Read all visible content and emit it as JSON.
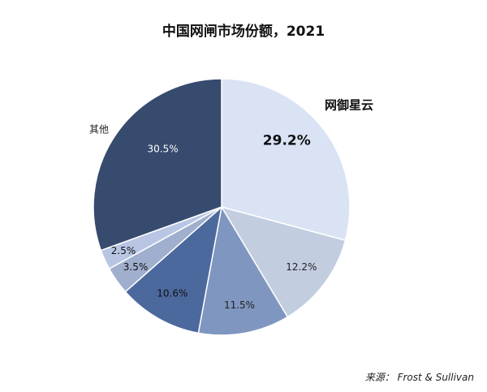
{
  "chart_data": {
    "type": "pie",
    "title": "中国网闸市场份额，2021",
    "slices": [
      {
        "label": "网御星云",
        "value": 29.2,
        "value_label": "29.2%",
        "color": "#dae3f4"
      },
      {
        "label": "",
        "value": 12.2,
        "value_label": "12.2%",
        "color": "#c2cde0"
      },
      {
        "label": "",
        "value": 11.5,
        "value_label": "11.5%",
        "color": "#7f96c0"
      },
      {
        "label": "",
        "value": 10.6,
        "value_label": "10.6%",
        "color": "#4c699e"
      },
      {
        "label": "",
        "value": 3.5,
        "value_label": "3.5%",
        "color": "#9fafcd"
      },
      {
        "label": "",
        "value": 2.5,
        "value_label": "2.5%",
        "color": "#b8c6e4"
      },
      {
        "label": "其他",
        "value": 30.5,
        "value_label": "30.5%",
        "color": "#364b6e"
      }
    ],
    "start_angle_deg": 0,
    "direction": "clockwise",
    "legend": "none"
  },
  "source": "来源：  Frost & Sullivan"
}
